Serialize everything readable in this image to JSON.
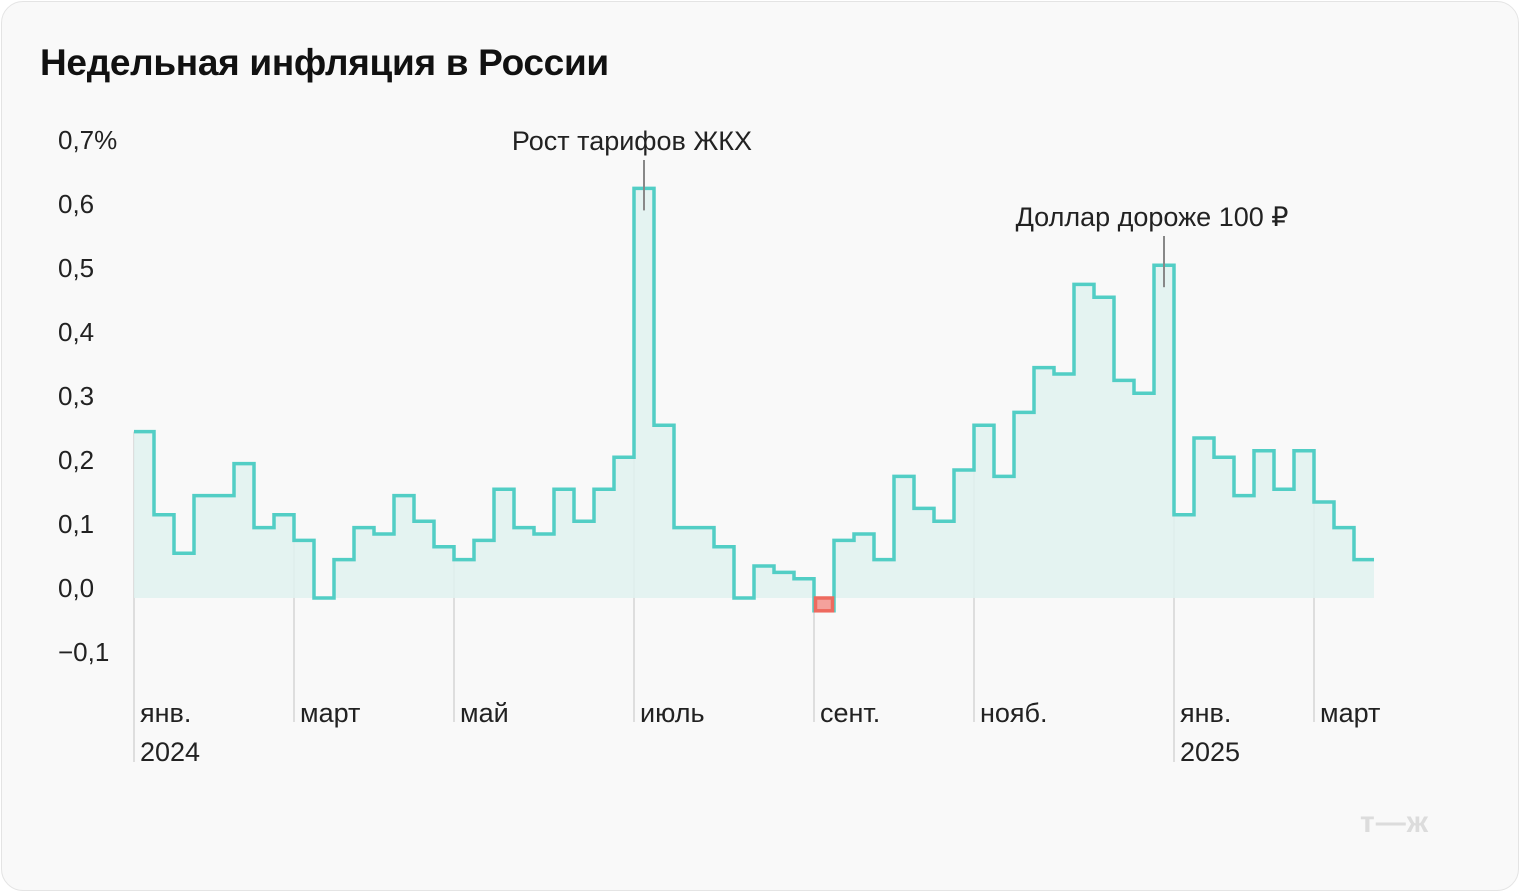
{
  "chart_data": {
    "type": "line",
    "style": "step",
    "title": "Недельная инфляция в России",
    "xlabel": "",
    "ylabel": "",
    "ylim": [
      -0.1,
      0.7
    ],
    "yticks": [
      {
        "value": 0.7,
        "label": "0,7%"
      },
      {
        "value": 0.6,
        "label": "0,6"
      },
      {
        "value": 0.5,
        "label": "0,5"
      },
      {
        "value": 0.4,
        "label": "0,4"
      },
      {
        "value": 0.3,
        "label": "0,3"
      },
      {
        "value": 0.2,
        "label": "0,2"
      },
      {
        "value": 0.1,
        "label": "0,1"
      },
      {
        "value": 0.0,
        "label": "0,0"
      },
      {
        "value": -0.1,
        "label": "−0,1"
      }
    ],
    "xticks": [
      {
        "week_index": 0,
        "label": "янв.",
        "year": "2024"
      },
      {
        "week_index": 8,
        "label": "март"
      },
      {
        "week_index": 16,
        "label": "май"
      },
      {
        "week_index": 25,
        "label": "июль"
      },
      {
        "week_index": 34,
        "label": "сент."
      },
      {
        "week_index": 42,
        "label": "нояб."
      },
      {
        "week_index": 52,
        "label": "янв.",
        "year": "2025"
      },
      {
        "week_index": 59,
        "label": "март"
      }
    ],
    "grid": false,
    "series": [
      {
        "name": "Недельная инфляция, %",
        "color": "#52cec5",
        "fill": "#e0f2f0",
        "negative_color": "#ee6a5f",
        "values": [
          0.26,
          0.13,
          0.07,
          0.16,
          0.16,
          0.21,
          0.11,
          0.13,
          0.09,
          0.0,
          0.06,
          0.11,
          0.1,
          0.16,
          0.12,
          0.08,
          0.06,
          0.09,
          0.17,
          0.11,
          0.1,
          0.17,
          0.12,
          0.17,
          0.22,
          0.64,
          0.27,
          0.11,
          0.11,
          0.08,
          0.0,
          0.05,
          0.04,
          0.03,
          -0.02,
          0.09,
          0.1,
          0.06,
          0.19,
          0.14,
          0.12,
          0.2,
          0.27,
          0.19,
          0.29,
          0.36,
          0.35,
          0.49,
          0.47,
          0.34,
          0.32,
          0.52,
          0.13,
          0.25,
          0.22,
          0.16,
          0.23,
          0.17,
          0.23,
          0.15,
          0.11,
          0.06
        ]
      }
    ],
    "annotations": [
      {
        "text": "Рост тарифов ЖКХ",
        "week_index": 25
      },
      {
        "text": "Доллар дороже 100 ₽",
        "week_index": 51
      }
    ]
  },
  "brand": {
    "logo": "т—ж"
  }
}
